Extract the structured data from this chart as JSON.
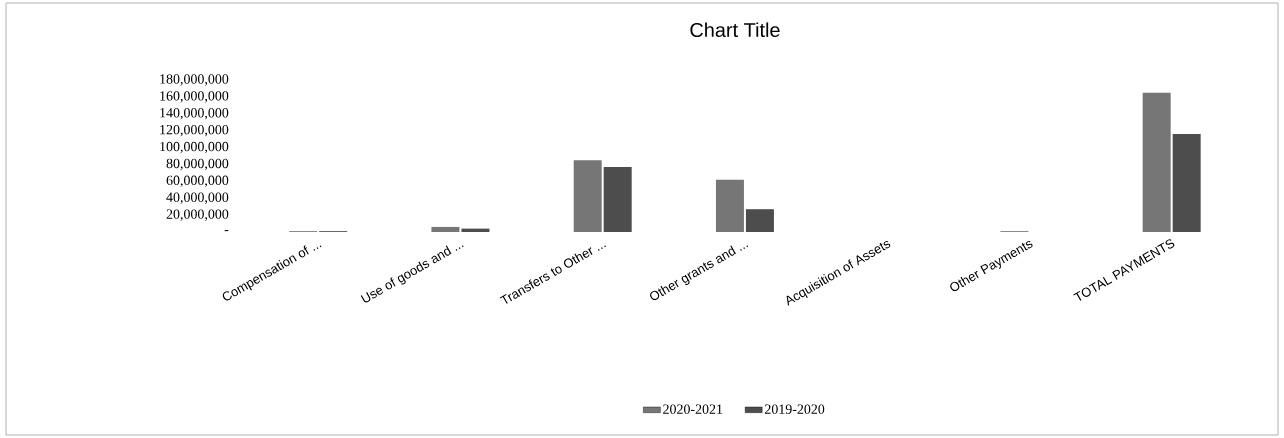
{
  "chart_data": {
    "type": "bar",
    "title": "Chart Title",
    "categories": [
      "Compensation of ...",
      "Use of goods and ...",
      "Transfers to Other ...",
      "Other grants and ...",
      "Acquisition of Assets",
      "Other Payments",
      "TOTAL PAYMENTS"
    ],
    "series": [
      {
        "name": "2020-2021",
        "color": "#767676",
        "values": [
          1000000,
          6000000,
          85000000,
          62000000,
          0,
          1000000,
          165000000
        ]
      },
      {
        "name": "2019-2020",
        "color": "#4d4d4d",
        "values": [
          1000000,
          4000000,
          77000000,
          27000000,
          0,
          0,
          116000000
        ]
      }
    ],
    "ylim": [
      0,
      180000000
    ],
    "yticks": [
      {
        "value": 0,
        "label": "-"
      },
      {
        "value": 20000000,
        "label": "20,000,000"
      },
      {
        "value": 40000000,
        "label": "40,000,000"
      },
      {
        "value": 60000000,
        "label": "60,000,000"
      },
      {
        "value": 80000000,
        "label": "80,000,000"
      },
      {
        "value": 100000000,
        "label": "100,000,000"
      },
      {
        "value": 120000000,
        "label": "120,000,000"
      },
      {
        "value": 140000000,
        "label": "140,000,000"
      },
      {
        "value": 160000000,
        "label": "160,000,000"
      },
      {
        "value": 180000000,
        "label": "180,000,000"
      }
    ],
    "legend": "bottom"
  }
}
